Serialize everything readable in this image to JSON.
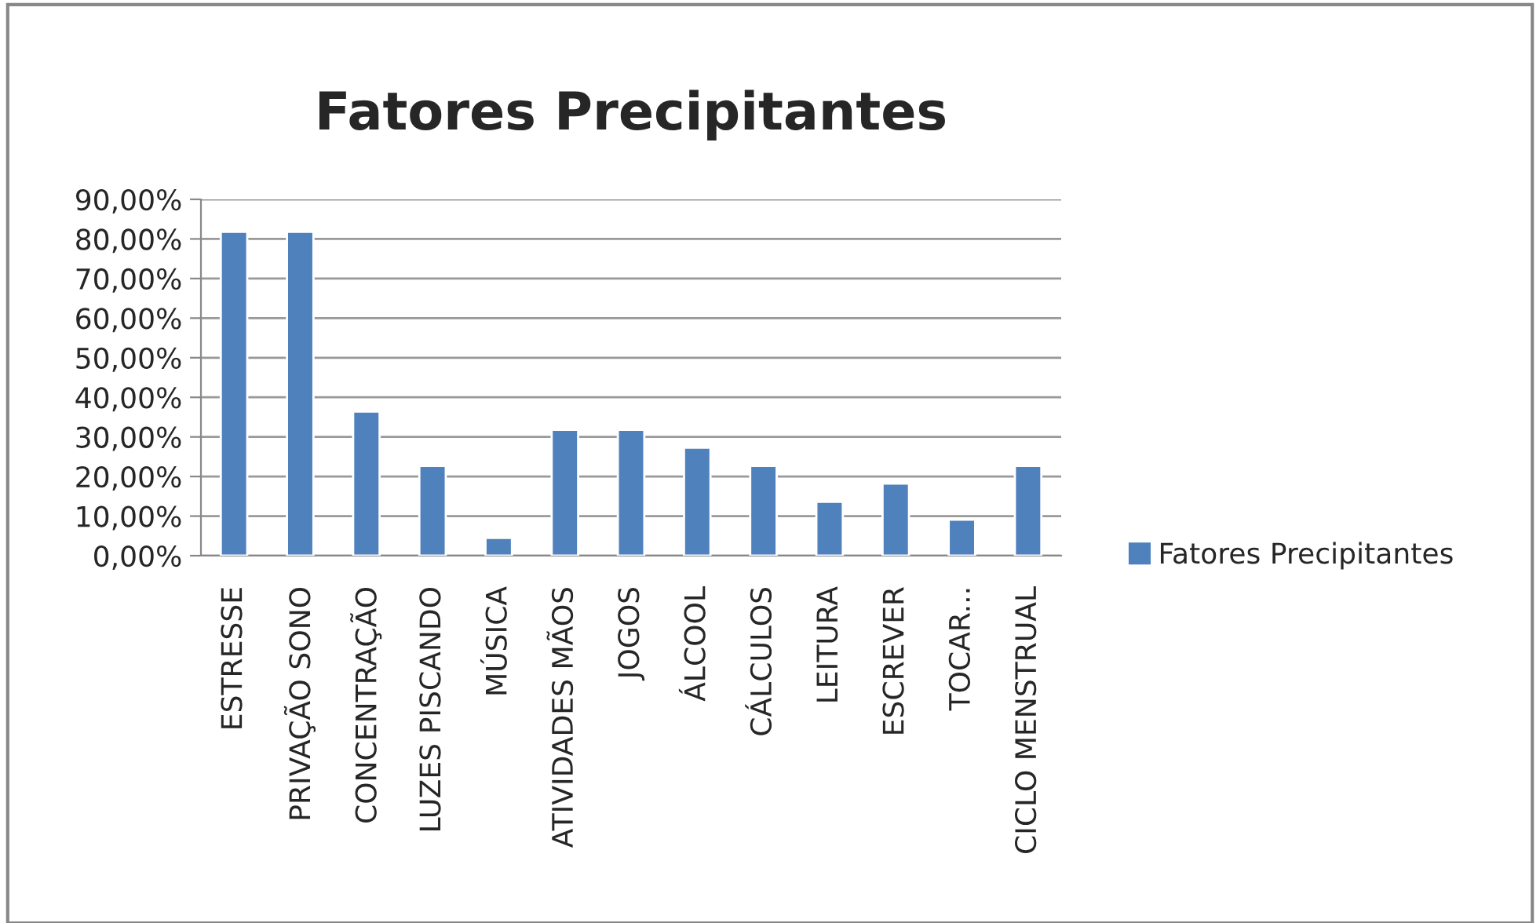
{
  "chart_data": {
    "type": "bar",
    "title": "Fatores Precipitantes",
    "categories": [
      "ESTRESSE",
      "PRIVAÇÃO SONO",
      "CONCENTRAÇÃO",
      "LUZES PISCANDO",
      "MÚSICA",
      "ATIVIDADES MÃOS",
      "JOGOS",
      "ÁLCOOL",
      "CÁLCULOS",
      "LEITURA",
      "ESCREVER",
      "TOCAR...",
      "CICLO MENSTRUAL"
    ],
    "series": [
      {
        "name": "Fatores Precipitantes",
        "color": "#4f81bd",
        "values": [
          81.8,
          81.8,
          36.4,
          22.7,
          4.5,
          31.8,
          31.8,
          27.3,
          22.7,
          13.6,
          18.2,
          9.1,
          22.7
        ]
      }
    ],
    "ylim": [
      0,
      90
    ],
    "yticks": [
      {
        "value": 0,
        "label": "0,00%"
      },
      {
        "value": 10,
        "label": "10,00%"
      },
      {
        "value": 20,
        "label": "20,00%"
      },
      {
        "value": 30,
        "label": "30,00%"
      },
      {
        "value": 40,
        "label": "40,00%"
      },
      {
        "value": 50,
        "label": "50,00%"
      },
      {
        "value": 60,
        "label": "60,00%"
      },
      {
        "value": 70,
        "label": "70,00%"
      },
      {
        "value": 80,
        "label": "80,00%"
      },
      {
        "value": 90,
        "label": "90,00%"
      }
    ],
    "grid": "y",
    "legend": "right"
  }
}
